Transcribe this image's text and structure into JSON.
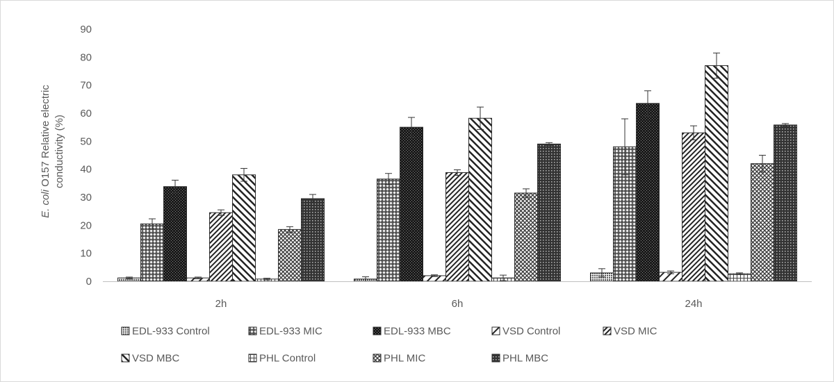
{
  "chart_data": {
    "type": "bar",
    "categories": [
      "2h",
      "6h",
      "24h"
    ],
    "y_ticks": [
      "0",
      "10",
      "20",
      "30",
      "40",
      "50",
      "60",
      "70",
      "80",
      "90"
    ],
    "ylim": [
      0,
      90
    ],
    "ylabel_italic": "E. coli",
    "ylabel_line1_rest": " O157 Relative electric",
    "ylabel_line2": "conductivity (%)",
    "xlabel": "",
    "grid": false,
    "legend_position": "bottom",
    "series": [
      {
        "name": "EDL-933 Control",
        "pattern": "pat-dense-dots",
        "values": [
          1.2,
          0.8,
          3.0
        ],
        "errors": [
          0.3,
          0.8,
          1.5
        ]
      },
      {
        "name": "EDL-933 MIC",
        "pattern": "pat-diamond-grid",
        "values": [
          20.5,
          36.5,
          48.0
        ],
        "errors": [
          1.8,
          2.0,
          10.0
        ]
      },
      {
        "name": "EDL-933 MBC",
        "pattern": "pat-dark-check",
        "values": [
          33.8,
          55.0,
          63.5
        ],
        "errors": [
          2.3,
          3.5,
          4.5
        ]
      },
      {
        "name": "VSD Control",
        "pattern": "pat-wide-back",
        "values": [
          1.2,
          2.0,
          3.2
        ],
        "errors": [
          0.3,
          0.3,
          0.5
        ]
      },
      {
        "name": "VSD MIC",
        "pattern": "pat-narrow-back",
        "values": [
          24.5,
          38.8,
          53.0
        ],
        "errors": [
          1.0,
          1.0,
          2.5
        ]
      },
      {
        "name": "VSD MBC",
        "pattern": "pat-wide-fwd",
        "values": [
          38.0,
          58.2,
          77.0
        ],
        "errors": [
          2.3,
          4.0,
          4.5
        ]
      },
      {
        "name": "PHL Control",
        "pattern": "pat-light-grid",
        "values": [
          0.8,
          1.2,
          2.7
        ],
        "errors": [
          0.3,
          1.0,
          0.3
        ]
      },
      {
        "name": "PHL MIC",
        "pattern": "pat-crosshatch",
        "values": [
          18.5,
          31.5,
          42.0
        ],
        "errors": [
          1.0,
          1.5,
          3.0
        ]
      },
      {
        "name": "PHL MBC",
        "pattern": "pat-dark-dots",
        "values": [
          29.5,
          49.0,
          55.8
        ],
        "errors": [
          1.5,
          0.5,
          0.5
        ]
      }
    ]
  }
}
